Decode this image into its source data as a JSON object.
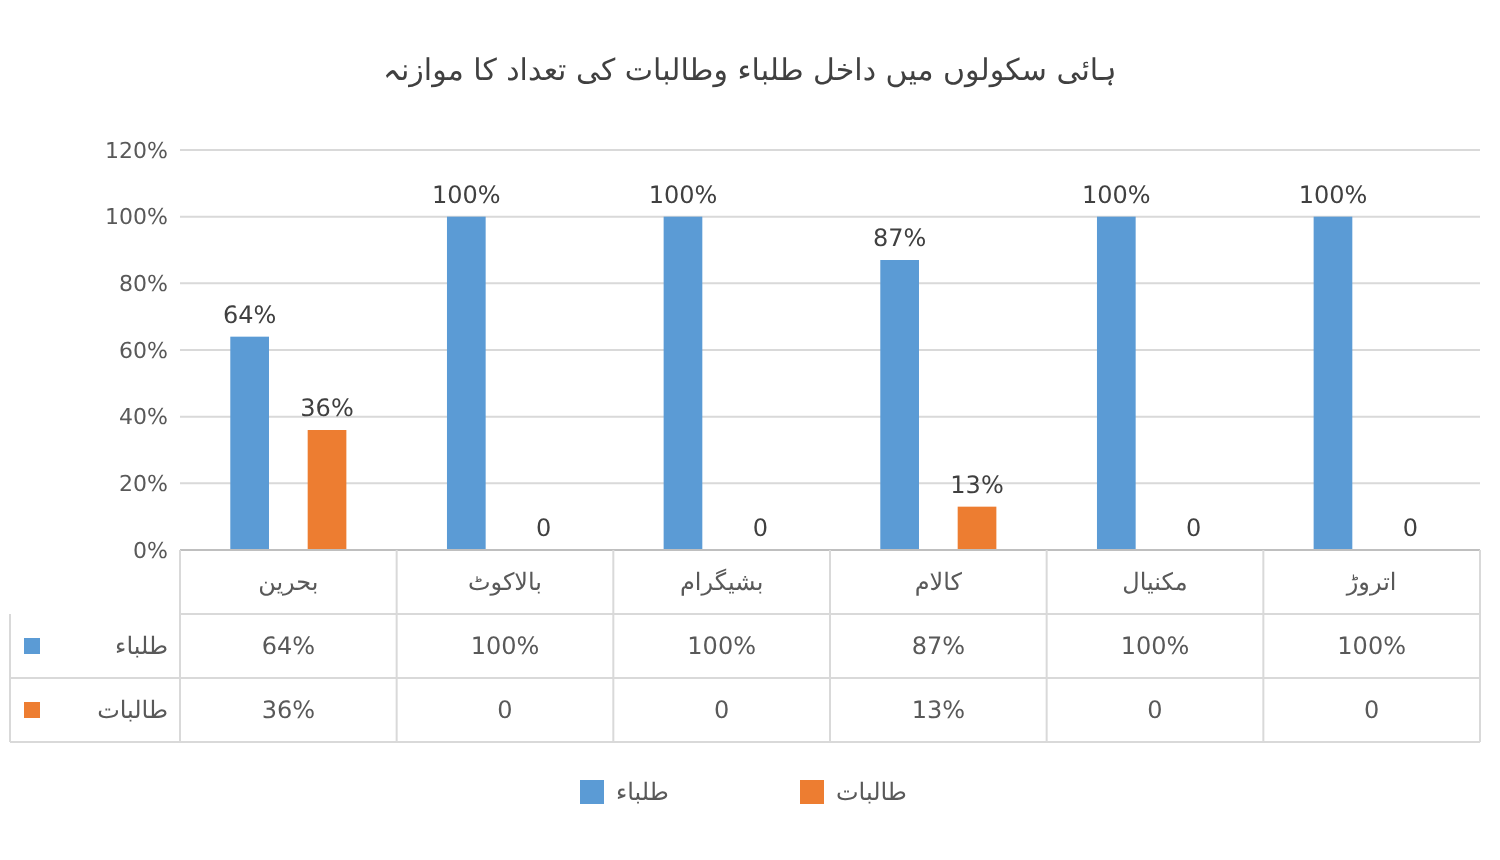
{
  "chart_data": {
    "type": "bar",
    "title": "ہائی سکولوں میں داخل طلباء وطالبات کی تعداد کا موازنہ",
    "categories": [
      "بحرین",
      "بالاکوٹ",
      "بشیگرام",
      "کالام",
      "مکنیال",
      "اتروڑ"
    ],
    "series": [
      {
        "name": "طلباء",
        "color": "#5b9bd5",
        "values": [
          64,
          100,
          100,
          87,
          100,
          100
        ],
        "value_labels": [
          "64%",
          "100%",
          "100%",
          "87%",
          "100%",
          "100%"
        ]
      },
      {
        "name": "طالبات",
        "color": "#ed7d31",
        "values": [
          36,
          0,
          0,
          13,
          0,
          0
        ],
        "value_labels": [
          "36%",
          "0",
          "0",
          "13%",
          "0",
          "0"
        ]
      }
    ],
    "ylim": [
      0,
      120
    ],
    "yticks": [
      {
        "value": 0,
        "label": "0%"
      },
      {
        "value": 20,
        "label": "20%"
      },
      {
        "value": 40,
        "label": "40%"
      },
      {
        "value": 60,
        "label": "60%"
      },
      {
        "value": 80,
        "label": "80%"
      },
      {
        "value": 100,
        "label": "100%"
      },
      {
        "value": 120,
        "label": "120%"
      }
    ],
    "grid": "y",
    "legend": "bottom"
  }
}
